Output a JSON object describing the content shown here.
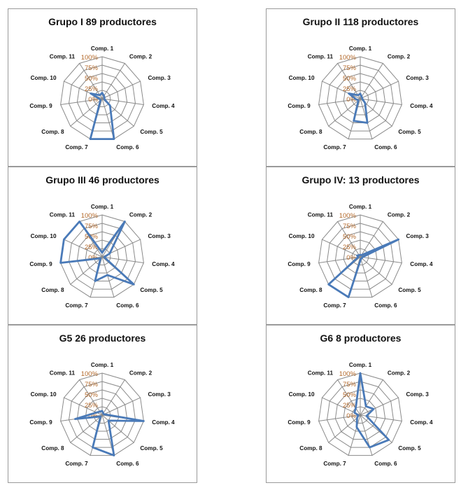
{
  "chart_data": [
    {
      "type": "radar",
      "title": "Grupo I 89 productores",
      "categories": [
        "Comp. 1",
        "Comp. 2",
        "Comp. 3",
        "Comp. 4",
        "Comp. 5",
        "Comp. 6",
        "Comp. 7",
        "Comp. 8",
        "Comp. 9",
        "Comp. 10",
        "Comp. 11"
      ],
      "tick_labels": [
        "0%",
        "25%",
        "50%",
        "75%",
        "100%"
      ],
      "ylim": [
        0,
        1
      ],
      "series": [
        {
          "values": [
            0.14,
            0.08,
            0.06,
            0.05,
            0.25,
            1.0,
            1.0,
            0.05,
            0.06,
            0.3,
            0.1
          ],
          "color": "#4a7ab8"
        }
      ]
    },
    {
      "type": "radar",
      "title": "Grupo II 118 productores",
      "categories": [
        "Comp. 1",
        "Comp. 2",
        "Comp. 3",
        "Comp. 4",
        "Comp. 5",
        "Comp. 6",
        "Comp. 7",
        "Comp. 8",
        "Comp. 9",
        "Comp. 10",
        "Comp. 11"
      ],
      "tick_labels": [
        "0%",
        "25%",
        "50%",
        "75%",
        "100%"
      ],
      "ylim": [
        0,
        1
      ],
      "series": [
        {
          "values": [
            0.12,
            0.06,
            0.05,
            0.05,
            0.15,
            0.6,
            0.55,
            0.06,
            0.1,
            0.3,
            0.1
          ],
          "color": "#4a7ab8"
        }
      ]
    },
    {
      "type": "radar",
      "title": "Grupo III 46 productores",
      "categories": [
        "Comp. 1",
        "Comp. 2",
        "Comp. 3",
        "Comp. 4",
        "Comp. 5",
        "Comp. 6",
        "Comp. 7",
        "Comp. 8",
        "Comp. 9",
        "Comp. 10",
        "Comp. 11"
      ],
      "tick_labels": [
        "0%",
        "25%",
        "50%",
        "75%",
        "100%"
      ],
      "ylim": [
        0,
        1
      ],
      "series": [
        {
          "values": [
            0.1,
            1.0,
            0.2,
            0.05,
            1.0,
            0.45,
            0.6,
            0.05,
            1.0,
            1.0,
            1.0
          ],
          "color": "#4a7ab8"
        }
      ]
    },
    {
      "type": "radar",
      "title": "Grupo IV: 13 productores",
      "categories": [
        "Comp. 1",
        "Comp. 2",
        "Comp. 3",
        "Comp. 4",
        "Comp. 5",
        "Comp. 6",
        "Comp. 7",
        "Comp. 8",
        "Comp. 9",
        "Comp. 10",
        "Comp. 11"
      ],
      "tick_labels": [
        "0%",
        "25%",
        "50%",
        "75%",
        "100%"
      ],
      "ylim": [
        0,
        1
      ],
      "series": [
        {
          "values": [
            0.05,
            0.05,
            1.0,
            0.05,
            0.05,
            0.05,
            1.0,
            1.0,
            0.05,
            0.08,
            0.05
          ],
          "color": "#4a7ab8"
        }
      ]
    },
    {
      "type": "radar",
      "title": "G5 26 productores",
      "categories": [
        "Comp. 1",
        "Comp. 2",
        "Comp. 3",
        "Comp. 4",
        "Comp. 5",
        "Comp. 6",
        "Comp. 7",
        "Comp. 8",
        "Comp. 9",
        "Comp. 10",
        "Comp. 11"
      ],
      "tick_labels": [
        "0%",
        "25%",
        "50%",
        "75%",
        "100%"
      ],
      "ylim": [
        0,
        1
      ],
      "series": [
        {
          "values": [
            0.1,
            0.05,
            0.05,
            1.0,
            0.2,
            1.0,
            0.8,
            0.05,
            0.65,
            0.15,
            0.1
          ],
          "color": "#4a7ab8"
        }
      ]
    },
    {
      "type": "radar",
      "title": "G6 8 productores",
      "categories": [
        "Comp. 1",
        "Comp. 2",
        "Comp. 3",
        "Comp. 4",
        "Comp. 5",
        "Comp. 6",
        "Comp. 7",
        "Comp. 8",
        "Comp. 9",
        "Comp. 10",
        "Comp. 11"
      ],
      "tick_labels": [
        "0%",
        "25%",
        "50%",
        "75%",
        "100%"
      ],
      "ylim": [
        0,
        1
      ],
      "series": [
        {
          "values": [
            1.0,
            0.25,
            0.35,
            0.15,
            0.9,
            0.8,
            0.3,
            0.1,
            0.05,
            0.15,
            0.2
          ],
          "color": "#4a7ab8"
        }
      ]
    }
  ]
}
